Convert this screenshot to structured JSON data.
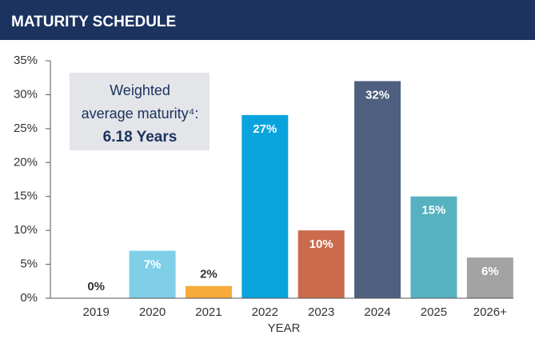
{
  "chart_data": {
    "type": "bar",
    "title": "MATURITY SCHEDULE",
    "categories": [
      "2019",
      "2020",
      "2021",
      "2022",
      "2023",
      "2024",
      "2025",
      "2026+"
    ],
    "values": [
      0,
      7,
      1.8,
      27,
      10,
      32,
      15,
      6
    ],
    "value_labels": [
      "0%",
      "7%",
      "2%",
      "27%",
      "10%",
      "32%",
      "15%",
      "6%"
    ],
    "colors": [
      "#d9d9d9",
      "#80cfe9",
      "#f6ab3b",
      "#09a4dd",
      "#c96b4c",
      "#4e5f7f",
      "#56b1c0",
      "#a3a3a3"
    ],
    "ylim": [
      0,
      35
    ],
    "yticks": [
      {
        "value": 0,
        "label": "0%"
      },
      {
        "value": 5,
        "label": "5%"
      },
      {
        "value": 10,
        "label": "10%"
      },
      {
        "value": 15,
        "label": "15%"
      },
      {
        "value": 20,
        "label": "20%"
      },
      {
        "value": 25,
        "label": "25%"
      },
      {
        "value": 30,
        "label": "30%"
      },
      {
        "value": 35,
        "label": "35%"
      }
    ],
    "xlabel": "YEAR",
    "annotation": {
      "lines": [
        "Weighted",
        "average maturity⁴:"
      ],
      "highlight": "6.18 Years"
    }
  }
}
